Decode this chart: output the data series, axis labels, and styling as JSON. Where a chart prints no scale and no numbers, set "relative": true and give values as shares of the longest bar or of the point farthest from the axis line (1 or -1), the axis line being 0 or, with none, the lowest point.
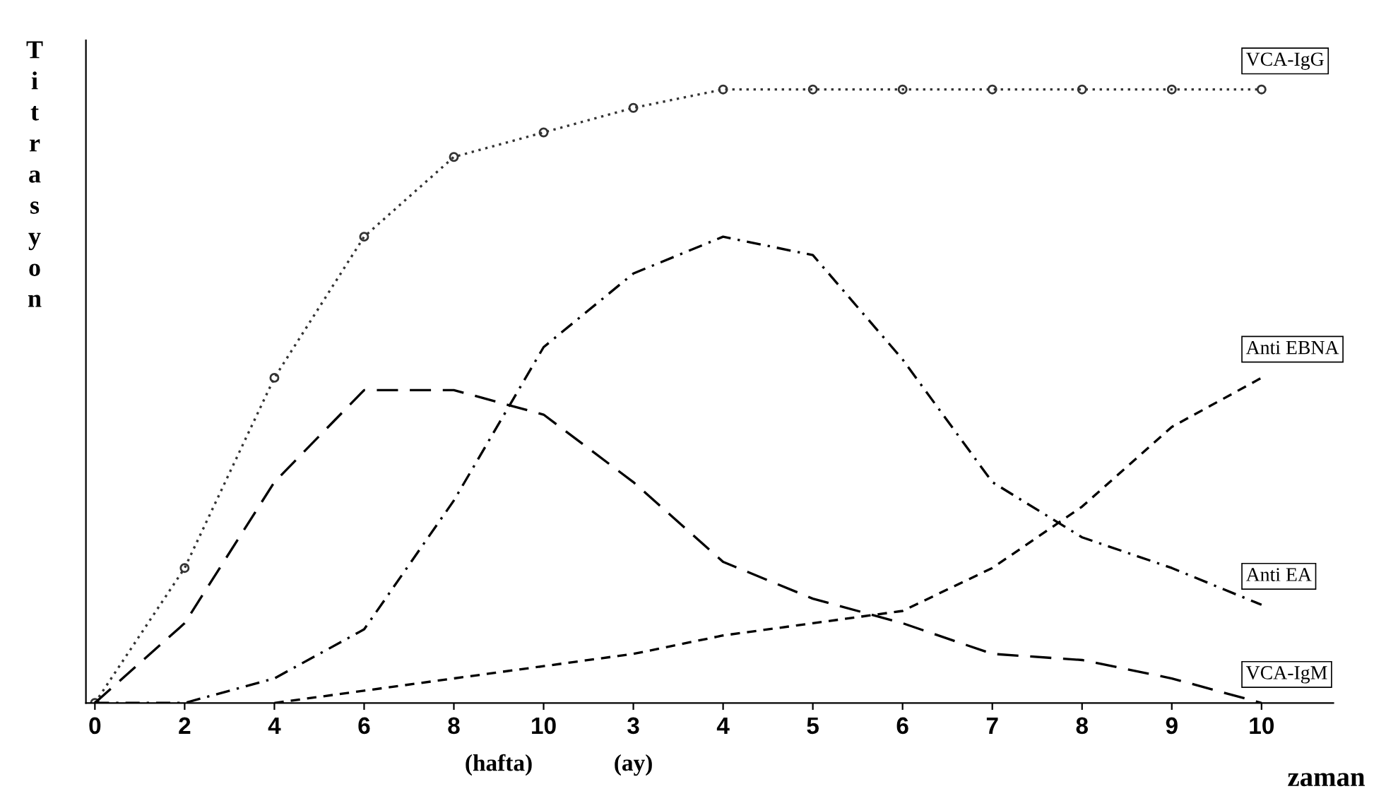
{
  "chart_data": {
    "type": "line",
    "relative": true,
    "ylabel": "Titrasyon",
    "xlabel": "zaman",
    "categories": [
      "0",
      "2",
      "4",
      "6",
      "8",
      "10",
      "3",
      "4",
      "5",
      "6",
      "7",
      "8",
      "9",
      "10"
    ],
    "annotations": [
      "(hafta)",
      "(ay)"
    ],
    "tick_labels": "x",
    "grid": false,
    "legend": false,
    "series": [
      {
        "name": "VCA-IgG",
        "color": "#333333",
        "line_style": "dotted",
        "marker": "circle",
        "values": [
          0,
          0.22,
          0.53,
          0.76,
          0.89,
          0.93,
          0.97,
          1,
          1,
          1,
          1,
          1,
          1,
          1
        ]
      },
      {
        "name": "Anti EBNA",
        "color": "#000000",
        "line_style": "dashed",
        "values": [
          null,
          null,
          0,
          0.02,
          0.04,
          0.06,
          0.08,
          0.11,
          0.13,
          0.15,
          0.22,
          0.32,
          0.45,
          0.53
        ]
      },
      {
        "name": "Anti EA",
        "color": "#000000",
        "line_style": "dashdot",
        "values": [
          0,
          0,
          0.04,
          0.12,
          0.33,
          0.58,
          0.7,
          0.76,
          0.73,
          0.56,
          0.36,
          0.27,
          0.22,
          0.16
        ]
      },
      {
        "name": "VCA-IgM",
        "color": "#000000",
        "line_style": "longdash",
        "values": [
          0,
          0.13,
          0.36,
          0.51,
          0.51,
          0.47,
          0.36,
          0.23,
          0.17,
          0.13,
          0.08,
          0.07,
          0.04,
          0
        ]
      }
    ]
  }
}
